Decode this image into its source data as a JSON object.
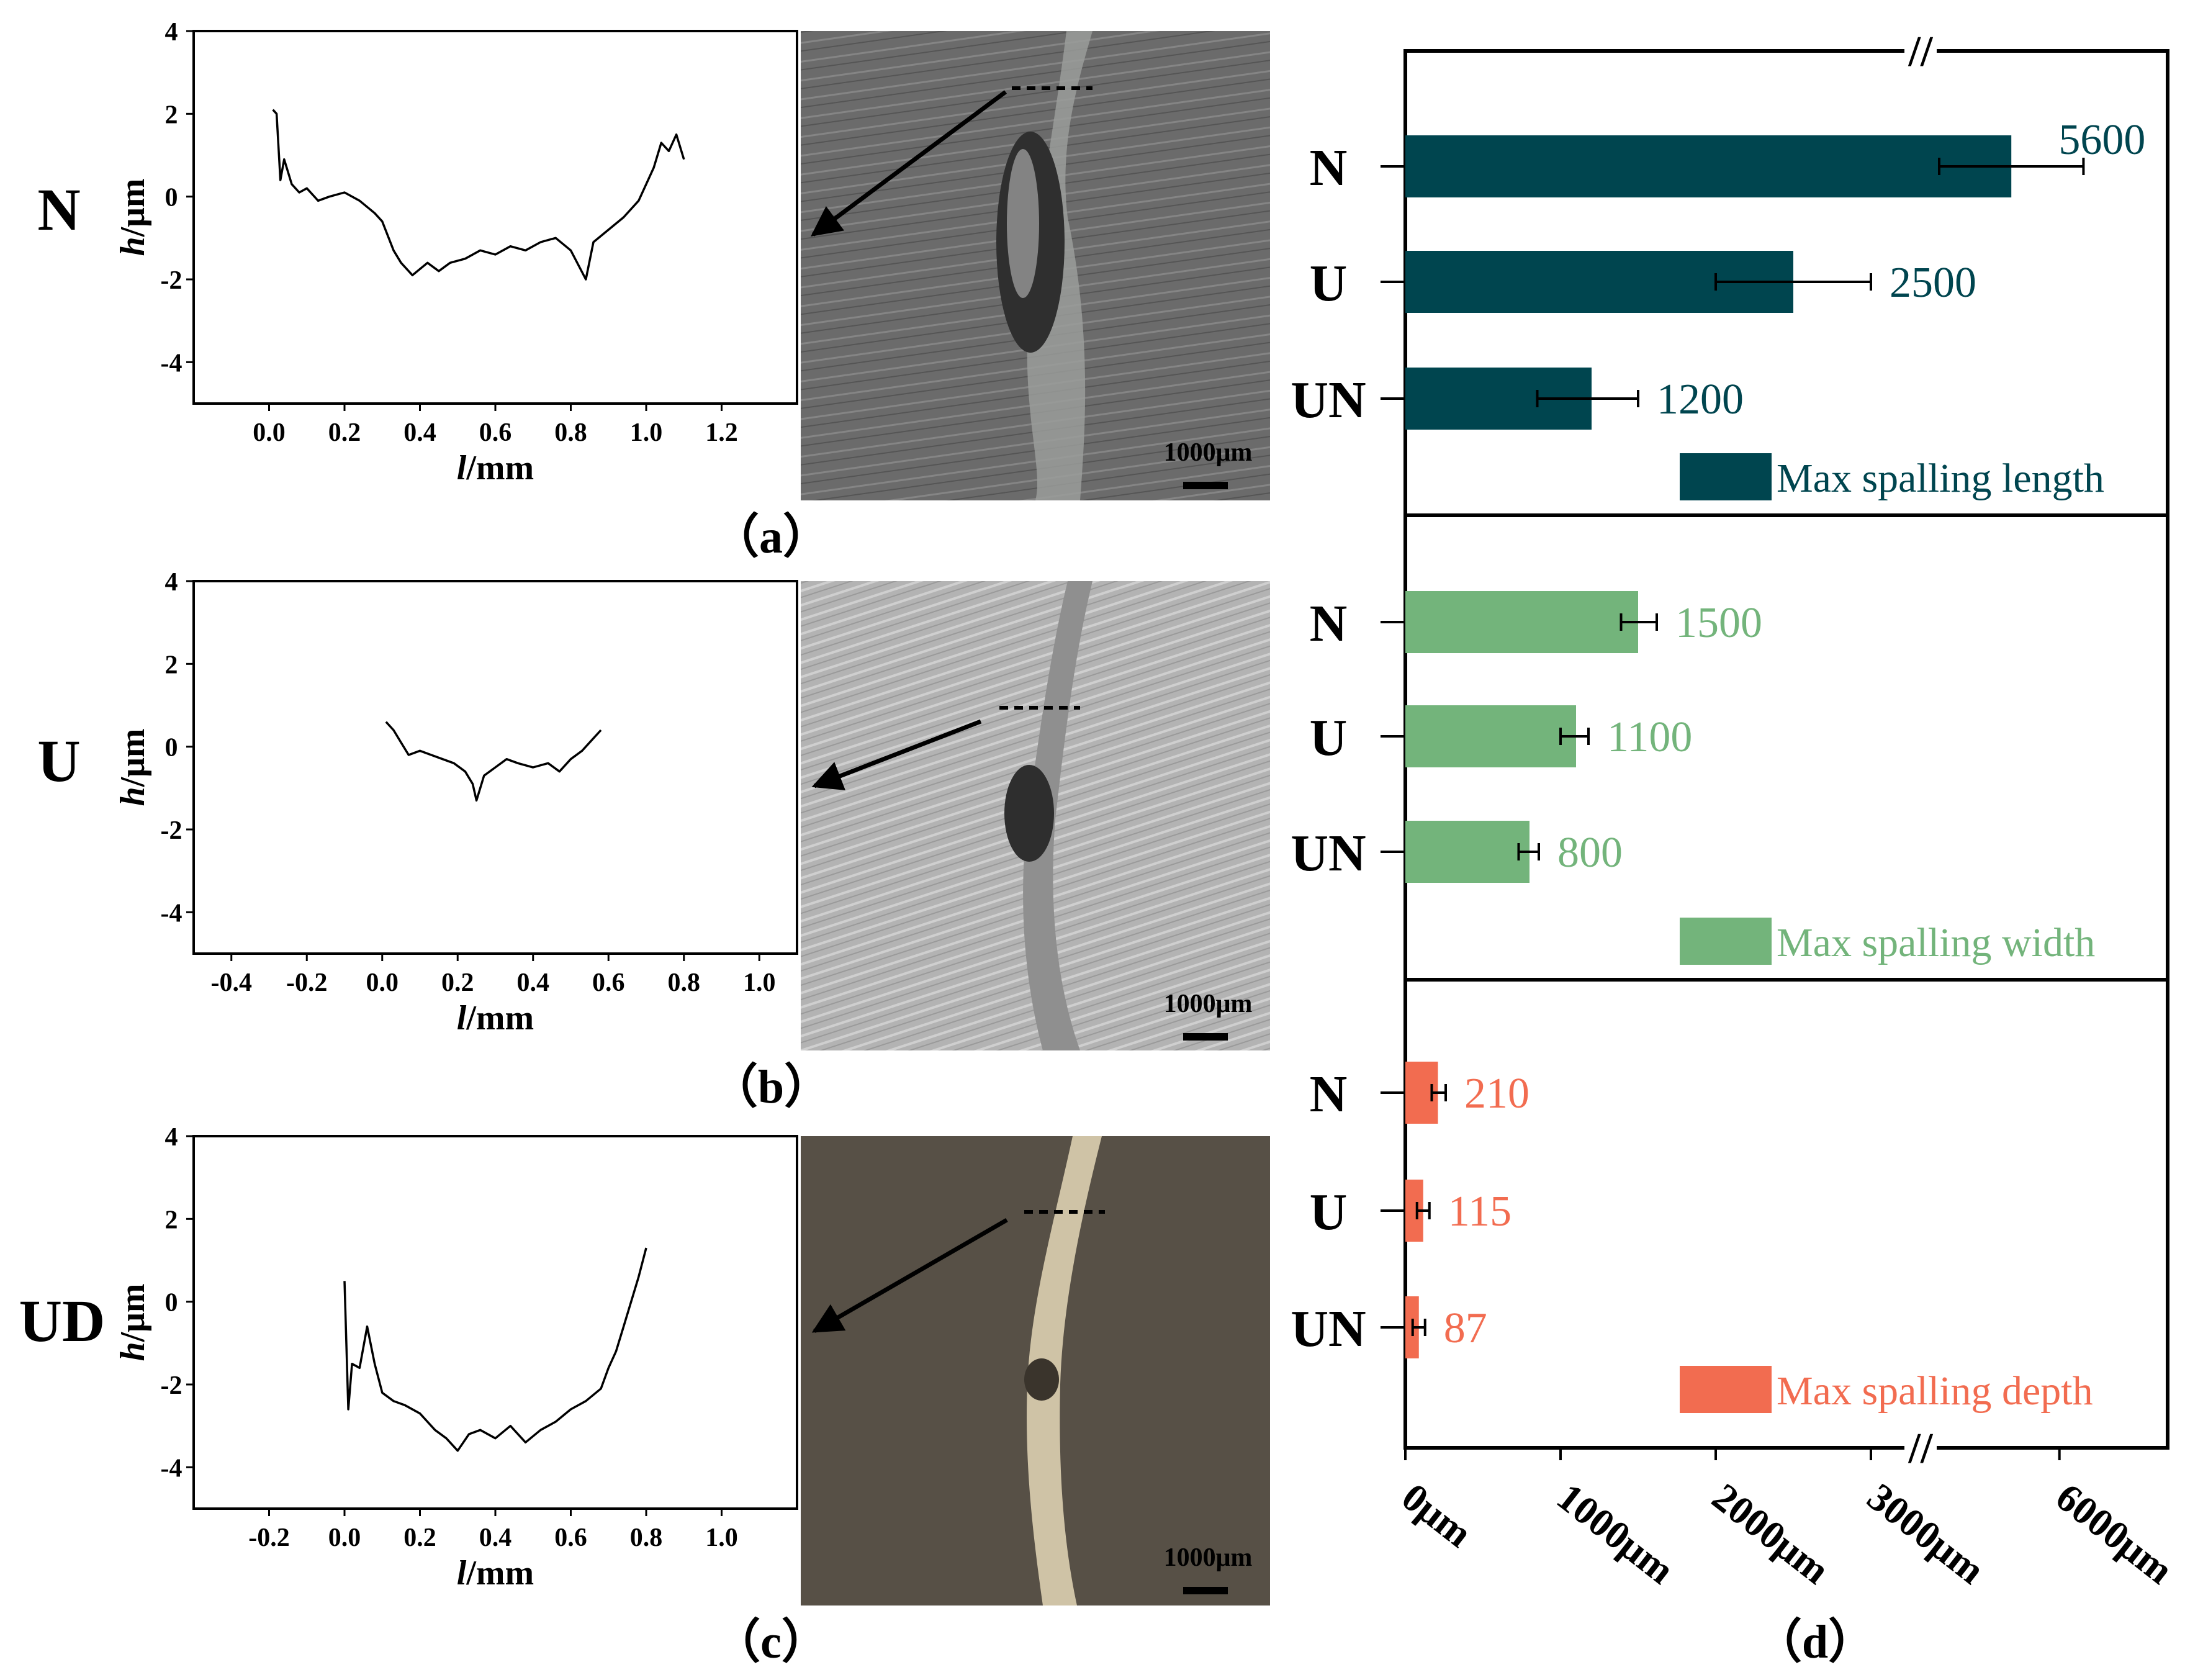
{
  "panels": {
    "a": {
      "caption": "（a）",
      "row_label": "N"
    },
    "b": {
      "caption": "（b）",
      "row_label": "U"
    },
    "c": {
      "caption": "（c）",
      "row_label": "UD"
    },
    "d": {
      "caption": "（d）"
    }
  },
  "scale_bar_label": "1000μm",
  "chart_data": [
    {
      "id": "a",
      "type": "line",
      "title": "",
      "xlabel": "l/mm",
      "ylabel": "h/μm",
      "xlim": [
        -0.2,
        1.4
      ],
      "ylim": [
        -5,
        4
      ],
      "xticks": [
        0.0,
        0.2,
        0.4,
        0.6,
        0.8,
        1.0,
        1.2
      ],
      "yticks": [
        -4,
        -2,
        0,
        2,
        4
      ],
      "xtick_labels": [
        "0.0",
        "0.2",
        "0.4",
        "0.6",
        "0.8",
        "1.0",
        "1.2"
      ],
      "ytick_labels": [
        "-4",
        "-2",
        "0",
        "2",
        "4"
      ],
      "x": [
        0.01,
        0.02,
        0.03,
        0.04,
        0.06,
        0.08,
        0.1,
        0.13,
        0.16,
        0.2,
        0.24,
        0.28,
        0.3,
        0.33,
        0.35,
        0.38,
        0.42,
        0.45,
        0.48,
        0.52,
        0.56,
        0.6,
        0.64,
        0.68,
        0.72,
        0.76,
        0.8,
        0.84,
        0.86,
        0.9,
        0.94,
        0.98,
        1.0,
        1.02,
        1.04,
        1.06,
        1.08,
        1.1
      ],
      "y": [
        2.1,
        2.0,
        0.4,
        0.9,
        0.3,
        0.1,
        0.2,
        -0.1,
        0.0,
        0.1,
        -0.1,
        -0.4,
        -0.6,
        -1.3,
        -1.6,
        -1.9,
        -1.6,
        -1.8,
        -1.6,
        -1.5,
        -1.3,
        -1.4,
        -1.2,
        -1.3,
        -1.1,
        -1.0,
        -1.3,
        -2.0,
        -1.1,
        -0.8,
        -0.5,
        -0.1,
        0.3,
        0.7,
        1.3,
        1.1,
        1.5,
        0.9
      ]
    },
    {
      "id": "b",
      "type": "line",
      "title": "",
      "xlabel": "l/mm",
      "ylabel": "h/μm",
      "xlim": [
        -0.5,
        1.1
      ],
      "ylim": [
        -5,
        4
      ],
      "xticks": [
        -0.4,
        -0.2,
        0.0,
        0.2,
        0.4,
        0.6,
        0.8,
        1.0
      ],
      "yticks": [
        -4,
        -2,
        0,
        2,
        4
      ],
      "xtick_labels": [
        "-0.4",
        "-0.2",
        "0.0",
        "0.2",
        "0.4",
        "0.6",
        "0.8",
        "1.0"
      ],
      "ytick_labels": [
        "-4",
        "-2",
        "0",
        "2",
        "4"
      ],
      "x": [
        0.01,
        0.03,
        0.05,
        0.07,
        0.1,
        0.13,
        0.16,
        0.19,
        0.22,
        0.24,
        0.25,
        0.27,
        0.3,
        0.33,
        0.36,
        0.4,
        0.44,
        0.47,
        0.5,
        0.53,
        0.56,
        0.58
      ],
      "y": [
        0.6,
        0.4,
        0.1,
        -0.2,
        -0.1,
        -0.2,
        -0.3,
        -0.4,
        -0.6,
        -0.9,
        -1.3,
        -0.7,
        -0.5,
        -0.3,
        -0.4,
        -0.5,
        -0.4,
        -0.6,
        -0.3,
        -0.1,
        0.2,
        0.4
      ]
    },
    {
      "id": "c",
      "type": "line",
      "title": "",
      "xlabel": "l/mm",
      "ylabel": "h/μm",
      "xlim": [
        -0.4,
        1.2
      ],
      "ylim": [
        -5,
        4
      ],
      "xticks": [
        -0.2,
        0.0,
        0.2,
        0.4,
        0.6,
        0.8,
        1.0
      ],
      "yticks": [
        -4,
        -2,
        0,
        2,
        4
      ],
      "xtick_labels": [
        "-0.2",
        "0.0",
        "0.2",
        "0.4",
        "0.6",
        "0.8",
        "1.0"
      ],
      "ytick_labels": [
        "-4",
        "-2",
        "0",
        "2",
        "4"
      ],
      "x": [
        0.0,
        0.01,
        0.02,
        0.04,
        0.06,
        0.08,
        0.1,
        0.13,
        0.16,
        0.2,
        0.24,
        0.27,
        0.3,
        0.33,
        0.36,
        0.4,
        0.44,
        0.48,
        0.52,
        0.56,
        0.6,
        0.64,
        0.68,
        0.7,
        0.72,
        0.74,
        0.76,
        0.78,
        0.8
      ],
      "y": [
        0.5,
        -2.6,
        -1.5,
        -1.6,
        -0.6,
        -1.5,
        -2.2,
        -2.4,
        -2.5,
        -2.7,
        -3.1,
        -3.3,
        -3.6,
        -3.2,
        -3.1,
        -3.3,
        -3.0,
        -3.4,
        -3.1,
        -2.9,
        -2.6,
        -2.4,
        -2.1,
        -1.6,
        -1.2,
        -0.6,
        0.0,
        0.6,
        1.3
      ]
    },
    {
      "id": "d",
      "type": "bar",
      "orientation": "horizontal",
      "title": "",
      "xlabel": "",
      "ylabel": "",
      "categories": [
        "N",
        "U",
        "UN"
      ],
      "axis_break_marker": "//",
      "xtick_labels": [
        "0μm",
        "1000μm",
        "2000μm",
        "3000μm",
        "6000μm"
      ],
      "xticks": [
        0,
        1000,
        2000,
        3000,
        6000
      ],
      "axis_break": [
        3200,
        5000
      ],
      "xlim": [
        0,
        6900
      ],
      "series": [
        {
          "name": "Max spalling length",
          "color": "#00454f",
          "values": [
            5600,
            2500,
            1200
          ],
          "errors_low": [
            600,
            500,
            350
          ],
          "errors_high": [
            600,
            500,
            300
          ]
        },
        {
          "name": "Max spalling width",
          "color": "#73b47b",
          "values": [
            1500,
            1100,
            800
          ],
          "errors_low": [
            110,
            100,
            70
          ],
          "errors_high": [
            120,
            80,
            60
          ]
        },
        {
          "name": "Max spalling depth",
          "color": "#f26c50",
          "values": [
            210,
            115,
            87
          ],
          "errors_low": [
            40,
            40,
            40
          ],
          "errors_high": [
            50,
            40,
            40
          ]
        }
      ],
      "value_labels": [
        [
          "5600",
          "2500",
          "1200"
        ],
        [
          "1500",
          "1100",
          "800"
        ],
        [
          "210",
          "115",
          "87"
        ]
      ]
    }
  ]
}
